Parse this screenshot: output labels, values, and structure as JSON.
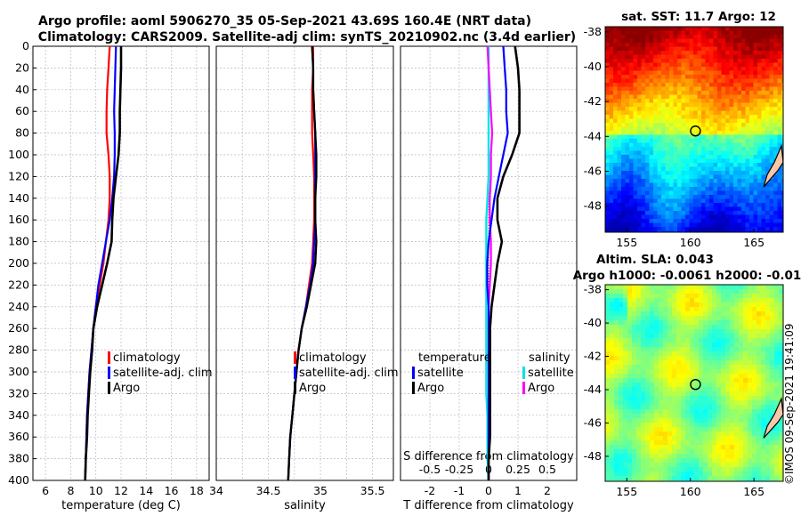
{
  "header": {
    "line1": "Argo profile: aoml 5906270_35 05-Sep-2021 43.69S 160.4E (NRT data)",
    "line2": "Climatology: CARS2009. Satellite-adj clim: synTS_20210902.nc (3.4d earlier)"
  },
  "copyright": "©IMOS 09-Sep-2021 19:41:09",
  "colors": {
    "climatology": "#ff0000",
    "satellite": "#0000ff",
    "argo": "#000000",
    "sal_satellite": "#00e5e5",
    "sal_argo": "#ff00ff",
    "grid": "#b8b8c8"
  },
  "chart_data": [
    {
      "type": "line",
      "id": "temperature",
      "xlabel": "temperature (deg C)",
      "ylabel": "",
      "xlim": [
        5,
        19
      ],
      "ylim": [
        400,
        0
      ],
      "xticks": [
        "6",
        "8",
        "10",
        "12",
        "14",
        "16",
        "18"
      ],
      "xtick_values": [
        6,
        8,
        10,
        12,
        14,
        16,
        18
      ],
      "yticks": [
        "0",
        "20",
        "40",
        "60",
        "80",
        "100",
        "120",
        "140",
        "160",
        "180",
        "200",
        "220",
        "240",
        "260",
        "280",
        "300",
        "320",
        "340",
        "360",
        "380",
        "400"
      ],
      "ytick_values": [
        0,
        20,
        40,
        60,
        80,
        100,
        120,
        140,
        160,
        180,
        200,
        220,
        240,
        260,
        280,
        300,
        320,
        340,
        360,
        380,
        400
      ],
      "legend": [
        "climatology",
        "satellite-adj. clim",
        "Argo"
      ],
      "series": [
        {
          "name": "climatology",
          "color": "#ff0000",
          "depth": [
            0,
            20,
            40,
            60,
            80,
            100,
            120,
            140,
            160,
            180,
            200,
            220,
            240,
            260,
            280,
            300,
            320,
            340,
            360,
            380,
            400
          ],
          "values": [
            11.1,
            11.0,
            10.9,
            10.85,
            10.85,
            11.0,
            11.1,
            11.1,
            11.0,
            10.8,
            10.6,
            10.3,
            10.0,
            9.8,
            9.65,
            9.5,
            9.4,
            9.3,
            9.25,
            9.2,
            9.15
          ]
        },
        {
          "name": "satellite-adj. clim",
          "color": "#0000ff",
          "depth": [
            0,
            20,
            40,
            60,
            80,
            100,
            120,
            140,
            160,
            180,
            200,
            220,
            240,
            260,
            280,
            300,
            320,
            340,
            360,
            380,
            400
          ],
          "values": [
            11.6,
            11.55,
            11.5,
            11.45,
            11.5,
            11.5,
            11.45,
            11.3,
            11.1,
            10.8,
            10.5,
            10.2,
            10.0,
            9.8,
            9.65,
            9.5,
            9.4,
            9.3,
            9.25,
            9.2,
            9.15
          ]
        },
        {
          "name": "Argo",
          "color": "#000000",
          "depth": [
            0,
            20,
            40,
            60,
            80,
            100,
            120,
            140,
            160,
            180,
            200,
            220,
            240,
            260,
            280,
            300,
            320,
            340,
            360,
            380,
            400
          ],
          "values": [
            12.0,
            12.0,
            11.95,
            11.9,
            11.9,
            11.8,
            11.6,
            11.4,
            11.3,
            11.25,
            10.9,
            10.5,
            10.1,
            9.8,
            9.7,
            9.55,
            9.45,
            9.35,
            9.3,
            9.2,
            9.15
          ]
        }
      ]
    },
    {
      "type": "line",
      "id": "salinity",
      "xlabel": "salinity",
      "ylabel": "",
      "xlim": [
        34,
        35.7
      ],
      "ylim": [
        400,
        0
      ],
      "xticks": [
        "34",
        "34.5",
        "35",
        "35.5"
      ],
      "xtick_values": [
        34,
        34.5,
        35,
        35.5
      ],
      "legend": [
        "climatology",
        "satellite-adj. clim",
        "Argo"
      ],
      "series": [
        {
          "name": "climatology",
          "color": "#ff0000",
          "depth": [
            0,
            20,
            40,
            60,
            80,
            100,
            120,
            140,
            160,
            180,
            200,
            220,
            240,
            260,
            280,
            300,
            320,
            340,
            360,
            380,
            400
          ],
          "values": [
            34.93,
            34.93,
            34.92,
            34.92,
            34.92,
            34.93,
            34.94,
            34.94,
            34.94,
            34.93,
            34.92,
            34.89,
            34.86,
            34.82,
            34.79,
            34.77,
            34.75,
            34.73,
            34.71,
            34.7,
            34.69
          ]
        },
        {
          "name": "satellite-adj. clim",
          "color": "#0000ff",
          "depth": [
            0,
            20,
            40,
            60,
            80,
            100,
            120,
            140,
            160,
            180,
            200,
            220,
            240,
            260,
            280,
            300,
            320,
            340,
            360,
            380,
            400
          ],
          "values": [
            34.92,
            34.93,
            34.93,
            34.94,
            34.95,
            34.95,
            34.95,
            34.95,
            34.95,
            34.94,
            34.93,
            34.9,
            34.86,
            34.82,
            34.79,
            34.77,
            34.75,
            34.73,
            34.71,
            34.7,
            34.69
          ]
        },
        {
          "name": "Argo",
          "color": "#000000",
          "depth": [
            0,
            20,
            40,
            60,
            80,
            100,
            120,
            140,
            160,
            180,
            200,
            220,
            240,
            260,
            280,
            300,
            320,
            340,
            360,
            380,
            400
          ],
          "values": [
            34.92,
            34.93,
            34.93,
            34.94,
            34.95,
            34.96,
            34.96,
            34.95,
            34.95,
            34.96,
            34.95,
            34.91,
            34.87,
            34.82,
            34.79,
            34.77,
            34.75,
            34.73,
            34.71,
            34.7,
            34.69
          ]
        }
      ]
    },
    {
      "type": "line",
      "id": "difference",
      "xlabel": "T difference from climatology",
      "xlabel_top": "S difference from climatology",
      "xlim": [
        -3,
        3
      ],
      "ylim": [
        400,
        0
      ],
      "xticks": [
        "-2",
        "-1",
        "0",
        "1",
        "2"
      ],
      "xtick_values": [
        -2,
        -1,
        0,
        1,
        2
      ],
      "sticks": [
        "-0.5",
        "-0.25",
        "0",
        "0.25",
        "0.5"
      ],
      "stick_values": [
        -0.5,
        -0.25,
        0,
        0.25,
        0.5
      ],
      "s_scale": 4,
      "legend_left_title": "temperature",
      "legend_right_title": "salinity",
      "legend_left": [
        "satellite",
        "Argo"
      ],
      "legend_right": [
        "satellite",
        "Argo"
      ],
      "series": [
        {
          "name": "T satellite",
          "color": "#0000ff",
          "depth": [
            0,
            20,
            40,
            60,
            80,
            100,
            120,
            140,
            160,
            180,
            200,
            220,
            240,
            260,
            280,
            300,
            320,
            340,
            360,
            380,
            400
          ],
          "values": [
            0.5,
            0.55,
            0.6,
            0.6,
            0.65,
            0.5,
            0.35,
            0.2,
            0.1,
            0.0,
            -0.05,
            -0.05,
            0.0,
            0.0,
            0.0,
            0.0,
            0.0,
            0.0,
            0.0,
            0.0,
            0.0
          ]
        },
        {
          "name": "T Argo",
          "color": "#000000",
          "depth": [
            0,
            20,
            40,
            60,
            80,
            100,
            120,
            140,
            160,
            180,
            200,
            220,
            240,
            260,
            280,
            300,
            320,
            340,
            360,
            380,
            400
          ],
          "values": [
            0.9,
            1.0,
            1.05,
            1.05,
            1.05,
            0.8,
            0.5,
            0.3,
            0.3,
            0.45,
            0.3,
            0.2,
            0.1,
            0.05,
            0.05,
            0.05,
            0.05,
            0.05,
            0.05,
            0.0,
            0.0
          ]
        },
        {
          "name": "S satellite",
          "color": "#00e5e5",
          "depth": [
            0,
            20,
            40,
            60,
            80,
            100,
            120,
            140,
            160,
            180,
            200,
            220,
            240,
            260,
            280,
            300,
            320,
            340,
            360,
            380,
            400
          ],
          "values": [
            0.0,
            0.0,
            0.0,
            0.0,
            0.0,
            0.0,
            0.0,
            -0.01,
            -0.02,
            -0.02,
            -0.02,
            -0.02,
            -0.02,
            -0.02,
            -0.02,
            -0.02,
            -0.02,
            -0.01,
            -0.01,
            -0.01,
            0.0
          ]
        },
        {
          "name": "S Argo",
          "color": "#ff00ff",
          "depth": [
            0,
            20,
            40,
            60,
            80,
            100,
            120,
            140,
            160,
            180,
            200,
            220,
            240,
            260,
            280,
            300,
            320,
            340,
            360,
            380,
            400
          ],
          "values": [
            -0.01,
            0.0,
            0.01,
            0.02,
            0.03,
            0.02,
            0.02,
            0.01,
            0.01,
            0.02,
            0.02,
            0.01,
            0.0,
            0.0,
            0.0,
            0.0,
            0.0,
            0.0,
            0.0,
            0.0,
            0.0
          ]
        }
      ]
    },
    {
      "type": "heatmap",
      "id": "sst_map",
      "title": "sat. SST: 11.7 Argo: 12",
      "xlim": [
        153.3,
        167.3
      ],
      "ylim": [
        -49.5,
        -37.7
      ],
      "xticks": [
        "155",
        "160",
        "165"
      ],
      "xtick_values": [
        155,
        160,
        165
      ],
      "yticks": [
        "-38",
        "-40",
        "-42",
        "-44",
        "-46",
        "-48"
      ],
      "ytick_values": [
        -38,
        -40,
        -42,
        -44,
        -46,
        -48
      ],
      "marker": {
        "lon": 160.4,
        "lat": -43.69
      }
    },
    {
      "type": "heatmap",
      "id": "sla_map",
      "title_line1": "Altim. SLA: 0.043",
      "title_line2": "Argo h1000: -0.0061 h2000: -0.01",
      "xlim": [
        153.3,
        167.3
      ],
      "ylim": [
        -49.5,
        -37.7
      ],
      "xticks": [
        "155",
        "160",
        "165"
      ],
      "xtick_values": [
        155,
        160,
        165
      ],
      "yticks": [
        "-38",
        "-40",
        "-42",
        "-44",
        "-46",
        "-48"
      ],
      "ytick_values": [
        -38,
        -40,
        -42,
        -44,
        -46,
        -48
      ],
      "marker": {
        "lon": 160.4,
        "lat": -43.69
      }
    }
  ]
}
